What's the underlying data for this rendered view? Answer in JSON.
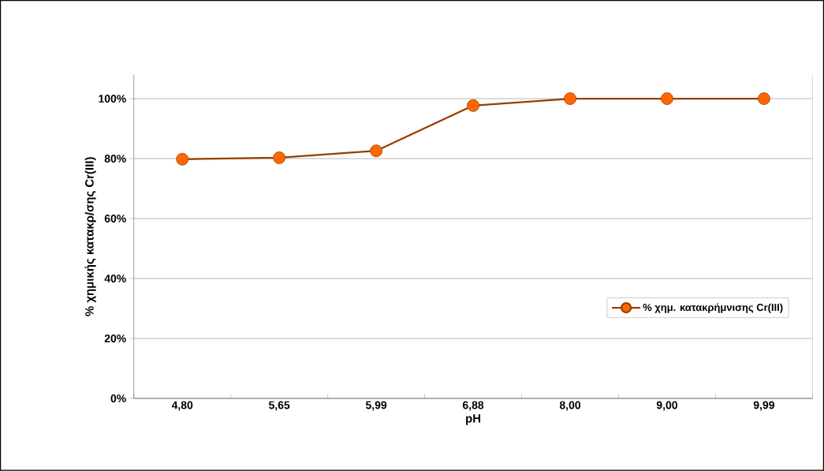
{
  "chart_data": {
    "type": "line",
    "xlabel": "pH",
    "ylabel": "% χημικής κατακρ/σης Cr(III)",
    "categories": [
      "4,80",
      "5,65",
      "5,99",
      "6,88",
      "8,00",
      "9,00",
      "9,99"
    ],
    "series": [
      {
        "name": "% χημ. κατακρήμνισης Cr(III)",
        "color": "#ff6600",
        "values": [
          79.8,
          80.3,
          82.6,
          97.7,
          100,
          100,
          100
        ]
      }
    ],
    "ylim": [
      0,
      108
    ],
    "yticks": [
      {
        "value": 0,
        "label": "0%"
      },
      {
        "value": 20,
        "label": "20%"
      },
      {
        "value": 40,
        "label": "40%"
      },
      {
        "value": 60,
        "label": "60%"
      },
      {
        "value": 80,
        "label": "80%"
      },
      {
        "value": 100,
        "label": "100%"
      }
    ],
    "grid": "y",
    "legend": "right",
    "marker": "circle",
    "line_style": "solid"
  }
}
